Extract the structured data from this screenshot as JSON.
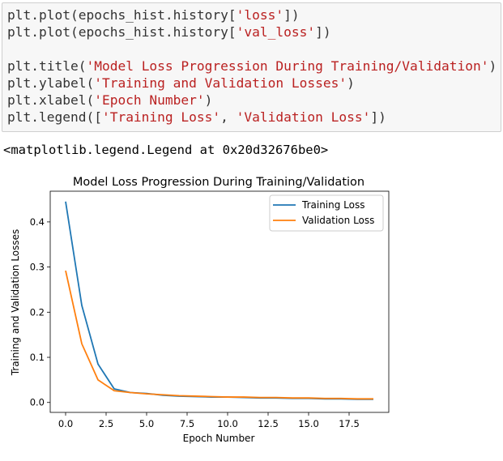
{
  "code_cell": {
    "lines": [
      [
        {
          "t": "plt.plot(epochs_hist.history["
        },
        {
          "t": "'loss'",
          "s": true
        },
        {
          "t": "])"
        }
      ],
      [
        {
          "t": "plt.plot(epochs_hist.history["
        },
        {
          "t": "'val_loss'",
          "s": true
        },
        {
          "t": "])"
        }
      ],
      [],
      [
        {
          "t": "plt.title("
        },
        {
          "t": "'Model Loss Progression During Training/Validation'",
          "s": true
        },
        {
          "t": ")"
        }
      ],
      [
        {
          "t": "plt.ylabel("
        },
        {
          "t": "'Training and Validation Losses'",
          "s": true
        },
        {
          "t": ")"
        }
      ],
      [
        {
          "t": "plt.xlabel("
        },
        {
          "t": "'Epoch Number'",
          "s": true
        },
        {
          "t": ")"
        }
      ],
      [
        {
          "t": "plt.legend(["
        },
        {
          "t": "'Training Loss'",
          "s": true
        },
        {
          "t": ", "
        },
        {
          "t": "'Validation Loss'",
          "s": true
        },
        {
          "t": "])"
        }
      ]
    ]
  },
  "output": {
    "text": "<matplotlib.legend.Legend at 0x20d32676be0>"
  },
  "chart_data": {
    "type": "line",
    "title": "Model Loss Progression During Training/Validation",
    "xlabel": "Epoch Number",
    "ylabel": "Training and Validation Losses",
    "xlim": [
      -0.95,
      19.95
    ],
    "ylim": [
      -0.022,
      0.468
    ],
    "xticks": [
      0.0,
      2.5,
      5.0,
      7.5,
      10.0,
      12.5,
      15.0,
      17.5
    ],
    "yticks": [
      0.0,
      0.1,
      0.2,
      0.3,
      0.4
    ],
    "grid": false,
    "legend_position": "top-right",
    "x": [
      0,
      1,
      2,
      3,
      4,
      5,
      6,
      7,
      8,
      9,
      10,
      11,
      12,
      13,
      14,
      15,
      16,
      17,
      18,
      19
    ],
    "series": [
      {
        "name": "Training Loss",
        "color": "#1f77b4",
        "values": [
          0.445,
          0.215,
          0.085,
          0.03,
          0.022,
          0.02,
          0.016,
          0.014,
          0.013,
          0.012,
          0.012,
          0.011,
          0.01,
          0.01,
          0.009,
          0.009,
          0.008,
          0.008,
          0.007,
          0.007
        ]
      },
      {
        "name": "Validation Loss",
        "color": "#ff7f0e",
        "values": [
          0.292,
          0.13,
          0.05,
          0.026,
          0.022,
          0.019,
          0.017,
          0.015,
          0.014,
          0.013,
          0.012,
          0.012,
          0.011,
          0.011,
          0.01,
          0.01,
          0.009,
          0.009,
          0.008,
          0.008
        ]
      }
    ]
  }
}
